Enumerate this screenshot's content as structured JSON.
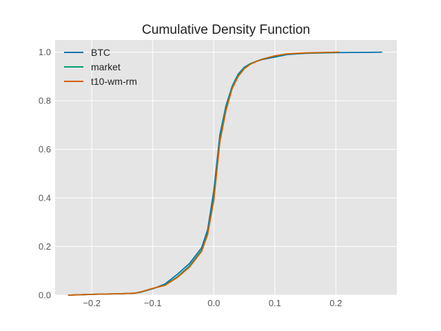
{
  "chart_data": {
    "type": "line",
    "title": "Cumulative Density Function",
    "xlabel": "",
    "ylabel": "",
    "xlim": [
      -0.26,
      0.3
    ],
    "ylim": [
      0.0,
      1.05
    ],
    "x_ticks": [
      -0.2,
      -0.1,
      0.0,
      0.1,
      0.2
    ],
    "x_tick_labels": [
      "−0.2",
      "−0.1",
      "0.0",
      "0.1",
      "0.2"
    ],
    "y_ticks": [
      0.0,
      0.2,
      0.4,
      0.6,
      0.8,
      1.0
    ],
    "y_tick_labels": [
      "0.0",
      "0.2",
      "0.4",
      "0.6",
      "0.8",
      "1.0"
    ],
    "grid": true,
    "legend_position": "top-left",
    "series": [
      {
        "name": "BTC",
        "color": "#0072b2",
        "x": [
          -0.238,
          -0.2,
          -0.15,
          -0.13,
          -0.12,
          -0.1,
          -0.08,
          -0.06,
          -0.04,
          -0.02,
          -0.01,
          0.0,
          0.01,
          0.02,
          0.03,
          0.04,
          0.05,
          0.06,
          0.07,
          0.08,
          0.1,
          0.12,
          0.15,
          0.2,
          0.25,
          0.275
        ],
        "values": [
          0.0,
          0.003,
          0.006,
          0.008,
          0.012,
          0.026,
          0.046,
          0.085,
          0.13,
          0.195,
          0.27,
          0.43,
          0.66,
          0.78,
          0.86,
          0.91,
          0.938,
          0.953,
          0.962,
          0.97,
          0.98,
          0.99,
          0.995,
          0.998,
          0.999,
          1.0
        ]
      },
      {
        "name": "market",
        "color": "#009e73",
        "x": [
          -0.238,
          -0.2,
          -0.15,
          -0.13,
          -0.12,
          -0.1,
          -0.08,
          -0.06,
          -0.04,
          -0.02,
          -0.01,
          0.0,
          0.01,
          0.02,
          0.03,
          0.04,
          0.05,
          0.06,
          0.07,
          0.08,
          0.1,
          0.12,
          0.15,
          0.2,
          0.205
        ],
        "values": [
          0.0,
          0.003,
          0.006,
          0.008,
          0.013,
          0.027,
          0.042,
          0.075,
          0.12,
          0.185,
          0.255,
          0.4,
          0.64,
          0.77,
          0.855,
          0.905,
          0.935,
          0.952,
          0.963,
          0.972,
          0.984,
          0.992,
          0.996,
          0.999,
          1.0
        ]
      },
      {
        "name": "t10-wm-rm",
        "color": "#d55e00",
        "x": [
          -0.238,
          -0.2,
          -0.15,
          -0.13,
          -0.12,
          -0.1,
          -0.08,
          -0.06,
          -0.04,
          -0.02,
          -0.01,
          0.0,
          0.01,
          0.02,
          0.03,
          0.04,
          0.05,
          0.06,
          0.07,
          0.08,
          0.1,
          0.12,
          0.15,
          0.2,
          0.205
        ],
        "values": [
          0.0,
          0.003,
          0.006,
          0.008,
          0.013,
          0.028,
          0.04,
          0.072,
          0.115,
          0.18,
          0.25,
          0.39,
          0.63,
          0.76,
          0.85,
          0.9,
          0.932,
          0.95,
          0.962,
          0.971,
          0.985,
          0.993,
          0.997,
          1.0,
          1.0
        ]
      }
    ]
  }
}
